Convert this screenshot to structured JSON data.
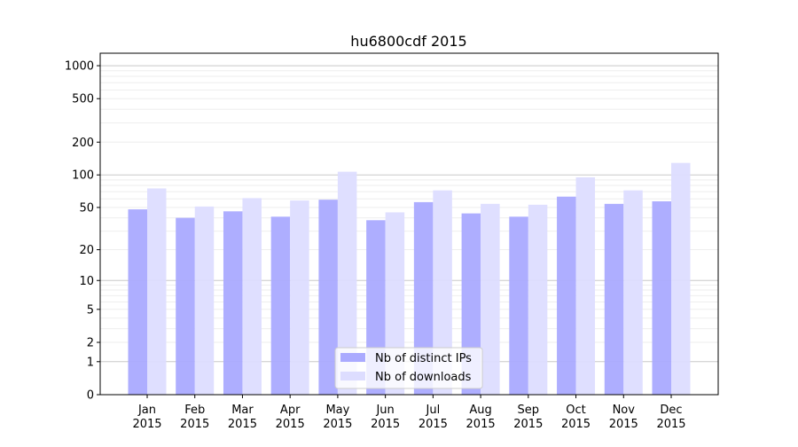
{
  "chart_data": {
    "type": "bar",
    "title": "hu6800cdf 2015",
    "xlabel": "",
    "ylabel": "",
    "y_scale": "log(1+y)",
    "ylim": [
      0,
      1300
    ],
    "yticks": [
      0,
      1,
      2,
      5,
      10,
      20,
      50,
      100,
      200,
      500,
      1000
    ],
    "grid": true,
    "legend_position": "lower-center",
    "categories": [
      "Jan\n2015",
      "Feb\n2015",
      "Mar\n2015",
      "Apr\n2015",
      "May\n2015",
      "Jun\n2015",
      "Jul\n2015",
      "Aug\n2015",
      "Sep\n2015",
      "Oct\n2015",
      "Nov\n2015",
      "Dec\n2015"
    ],
    "series": [
      {
        "name": "Nb of distinct IPs",
        "color": "#aaaaff",
        "values": [
          48,
          40,
          46,
          41,
          59,
          38,
          56,
          44,
          41,
          63,
          54,
          57
        ]
      },
      {
        "name": "Nb of downloads",
        "color": "#ddddff",
        "values": [
          75,
          51,
          61,
          58,
          107,
          45,
          72,
          54,
          53,
          95,
          72,
          129
        ]
      }
    ]
  }
}
